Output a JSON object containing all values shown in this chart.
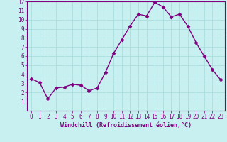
{
  "x": [
    0,
    1,
    2,
    3,
    4,
    5,
    6,
    7,
    8,
    9,
    10,
    11,
    12,
    13,
    14,
    15,
    16,
    17,
    18,
    19,
    20,
    21,
    22,
    23
  ],
  "y": [
    3.5,
    3.1,
    1.3,
    2.5,
    2.6,
    2.9,
    2.8,
    2.2,
    2.5,
    4.2,
    6.3,
    7.8,
    9.3,
    10.6,
    10.4,
    11.9,
    11.4,
    10.3,
    10.6,
    9.3,
    7.5,
    6.0,
    4.5,
    3.4
  ],
  "line_color": "#800080",
  "marker": "D",
  "marker_size": 2.5,
  "bg_color": "#c8f0f0",
  "grid_color": "#aadddd",
  "tick_color": "#800080",
  "label_color": "#800080",
  "xlabel": "Windchill (Refroidissement éolien,°C)",
  "ylim": [
    0,
    12
  ],
  "xlim": [
    -0.5,
    23.5
  ],
  "yticks": [
    1,
    2,
    3,
    4,
    5,
    6,
    7,
    8,
    9,
    10,
    11,
    12
  ],
  "xticks": [
    0,
    1,
    2,
    3,
    4,
    5,
    6,
    7,
    8,
    9,
    10,
    11,
    12,
    13,
    14,
    15,
    16,
    17,
    18,
    19,
    20,
    21,
    22,
    23
  ],
  "xlabel_fontsize": 6,
  "tick_fontsize": 5.5,
  "linewidth": 1.0
}
